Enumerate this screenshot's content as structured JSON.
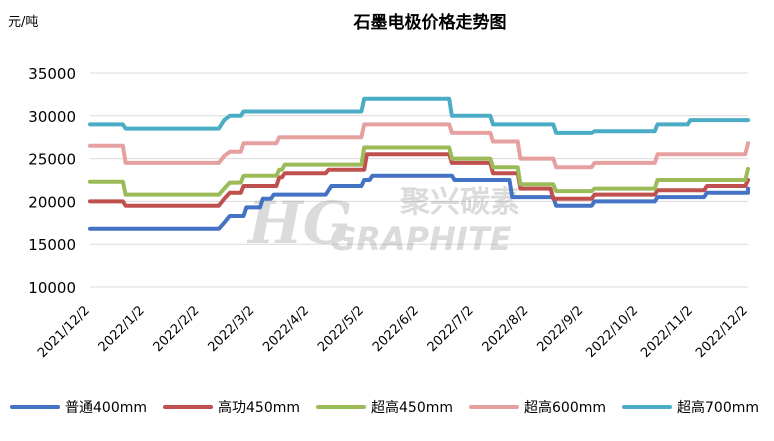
{
  "chart_data": {
    "type": "line",
    "title": "石墨电极价格走势图",
    "ylabel": "元/吨",
    "ylim": [
      10000,
      35000
    ],
    "yticks": [
      10000,
      15000,
      20000,
      25000,
      30000,
      35000
    ],
    "x_tick_labels": [
      "2021/12/2",
      "2022/1/2",
      "2022/2/2",
      "2022/3/2",
      "2022/4/2",
      "2022/5/2",
      "2022/6/2",
      "2022/7/2",
      "2022/8/2",
      "2022/9/2",
      "2022/10/2",
      "2022/11/2",
      "2022/12/2"
    ],
    "grid": "horizontal",
    "legend_position": "bottom",
    "watermark": "聚兴碳素 GRAPHITE",
    "series": [
      {
        "name": "普通400mm",
        "color": "#4472c4",
        "points": [
          [
            0,
            16800
          ],
          [
            2.35,
            16800
          ],
          [
            2.45,
            17500
          ],
          [
            2.55,
            18300
          ],
          [
            2.8,
            18300
          ],
          [
            2.85,
            19300
          ],
          [
            3.1,
            19300
          ],
          [
            3.15,
            20300
          ],
          [
            3.3,
            20300
          ],
          [
            3.35,
            20800
          ],
          [
            4.3,
            20800
          ],
          [
            4.4,
            21800
          ],
          [
            4.95,
            21800
          ],
          [
            5,
            22500
          ],
          [
            5.1,
            22500
          ],
          [
            5.15,
            23000
          ],
          [
            6.6,
            23000
          ],
          [
            6.65,
            22500
          ],
          [
            7.65,
            22500
          ],
          [
            7.7,
            20500
          ],
          [
            8.45,
            20500
          ],
          [
            8.5,
            19500
          ],
          [
            9.15,
            19500
          ],
          [
            9.2,
            20000
          ],
          [
            10.3,
            20000
          ],
          [
            10.35,
            20500
          ],
          [
            11.2,
            20500
          ],
          [
            11.25,
            21000
          ],
          [
            12,
            21000
          ],
          [
            12,
            21500
          ]
        ]
      },
      {
        "name": "高功450mm",
        "color": "#c0504d",
        "points": [
          [
            0,
            20000
          ],
          [
            0.6,
            20000
          ],
          [
            0.65,
            19500
          ],
          [
            2.35,
            19500
          ],
          [
            2.45,
            20300
          ],
          [
            2.55,
            21000
          ],
          [
            2.75,
            21000
          ],
          [
            2.8,
            21800
          ],
          [
            3.4,
            21800
          ],
          [
            3.45,
            22800
          ],
          [
            3.5,
            22800
          ],
          [
            3.55,
            23300
          ],
          [
            4.3,
            23300
          ],
          [
            4.35,
            23700
          ],
          [
            5,
            23700
          ],
          [
            5.05,
            25500
          ],
          [
            6.55,
            25500
          ],
          [
            6.6,
            24500
          ],
          [
            7.3,
            24500
          ],
          [
            7.35,
            23300
          ],
          [
            7.8,
            23300
          ],
          [
            7.85,
            21500
          ],
          [
            8.4,
            21500
          ],
          [
            8.45,
            20300
          ],
          [
            9.15,
            20300
          ],
          [
            9.2,
            20800
          ],
          [
            10.3,
            20800
          ],
          [
            10.35,
            21300
          ],
          [
            11.2,
            21300
          ],
          [
            11.25,
            21800
          ],
          [
            11.95,
            21800
          ],
          [
            12,
            22500
          ]
        ]
      },
      {
        "name": "超高450mm",
        "color": "#9bbb59",
        "points": [
          [
            0,
            22300
          ],
          [
            0.6,
            22300
          ],
          [
            0.65,
            20800
          ],
          [
            2.35,
            20800
          ],
          [
            2.45,
            21500
          ],
          [
            2.55,
            22200
          ],
          [
            2.75,
            22200
          ],
          [
            2.8,
            23000
          ],
          [
            3.4,
            23000
          ],
          [
            3.45,
            23700
          ],
          [
            3.5,
            23700
          ],
          [
            3.55,
            24300
          ],
          [
            4.95,
            24300
          ],
          [
            5,
            26300
          ],
          [
            6.55,
            26300
          ],
          [
            6.6,
            25000
          ],
          [
            7.3,
            25000
          ],
          [
            7.35,
            24000
          ],
          [
            7.8,
            24000
          ],
          [
            7.85,
            22000
          ],
          [
            8.45,
            22000
          ],
          [
            8.5,
            21200
          ],
          [
            9.15,
            21200
          ],
          [
            9.2,
            21500
          ],
          [
            10.3,
            21500
          ],
          [
            10.35,
            22500
          ],
          [
            11.95,
            22500
          ],
          [
            12,
            23800
          ]
        ]
      },
      {
        "name": "超高600mm",
        "color": "#e6a0a0",
        "points": [
          [
            0,
            26500
          ],
          [
            0.6,
            26500
          ],
          [
            0.65,
            24500
          ],
          [
            2.35,
            24500
          ],
          [
            2.45,
            25300
          ],
          [
            2.55,
            25800
          ],
          [
            2.75,
            25800
          ],
          [
            2.8,
            26800
          ],
          [
            3.4,
            26800
          ],
          [
            3.45,
            27500
          ],
          [
            4.95,
            27500
          ],
          [
            5,
            29000
          ],
          [
            6.55,
            29000
          ],
          [
            6.6,
            28000
          ],
          [
            7.3,
            28000
          ],
          [
            7.35,
            27000
          ],
          [
            7.8,
            27000
          ],
          [
            7.85,
            25000
          ],
          [
            8.45,
            25000
          ],
          [
            8.5,
            24000
          ],
          [
            9.15,
            24000
          ],
          [
            9.2,
            24500
          ],
          [
            10.3,
            24500
          ],
          [
            10.35,
            25500
          ],
          [
            11.95,
            25500
          ],
          [
            12,
            26800
          ]
        ]
      },
      {
        "name": "超高700mm",
        "color": "#4bacc6",
        "points": [
          [
            0,
            29000
          ],
          [
            0.6,
            29000
          ],
          [
            0.65,
            28500
          ],
          [
            2.35,
            28500
          ],
          [
            2.45,
            29500
          ],
          [
            2.55,
            30000
          ],
          [
            2.75,
            30000
          ],
          [
            2.8,
            30500
          ],
          [
            4.95,
            30500
          ],
          [
            5,
            32000
          ],
          [
            6.55,
            32000
          ],
          [
            6.6,
            30000
          ],
          [
            7.3,
            30000
          ],
          [
            7.35,
            29000
          ],
          [
            8.45,
            29000
          ],
          [
            8.5,
            28000
          ],
          [
            9.15,
            28000
          ],
          [
            9.2,
            28200
          ],
          [
            10.3,
            28200
          ],
          [
            10.35,
            29000
          ],
          [
            10.9,
            29000
          ],
          [
            10.95,
            29500
          ],
          [
            12,
            29500
          ]
        ]
      }
    ]
  }
}
